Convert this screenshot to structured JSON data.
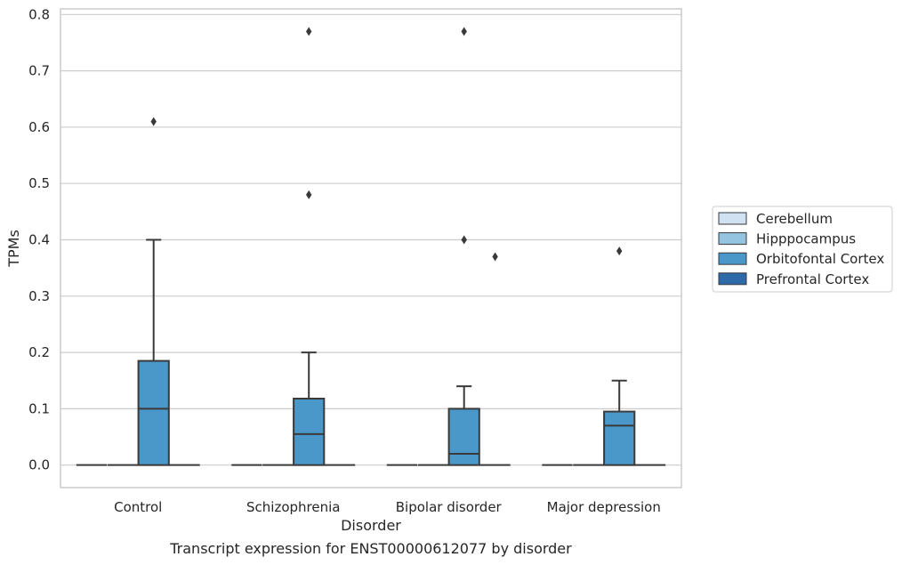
{
  "chart_data": {
    "type": "box",
    "title": "",
    "caption": "Transcript expression for ENST00000612077 by disorder",
    "xlabel": "Disorder",
    "ylabel": "TPMs",
    "ylim": [
      -0.04,
      0.81
    ],
    "yticks": [
      0.0,
      0.1,
      0.2,
      0.3,
      0.4,
      0.5,
      0.6,
      0.7,
      0.8
    ],
    "ytick_labels": [
      "0.0",
      "0.1",
      "0.2",
      "0.3",
      "0.4",
      "0.5",
      "0.6",
      "0.7",
      "0.8"
    ],
    "grid": "horizontal",
    "legend_position": "right",
    "categories": [
      "Control",
      "Schizophrenia",
      "Bipolar disorder",
      "Major depression"
    ],
    "series": [
      {
        "name": "Cerebellum",
        "color": "#d0e1f2",
        "boxes": [
          {
            "min": 0,
            "q1": 0,
            "median": 0,
            "q3": 0,
            "max": 0,
            "outliers": []
          },
          {
            "min": 0,
            "q1": 0,
            "median": 0,
            "q3": 0,
            "max": 0,
            "outliers": []
          },
          {
            "min": 0,
            "q1": 0,
            "median": 0,
            "q3": 0,
            "max": 0,
            "outliers": []
          },
          {
            "min": 0,
            "q1": 0,
            "median": 0,
            "q3": 0,
            "max": 0,
            "outliers": []
          }
        ]
      },
      {
        "name": "Hipppocampus",
        "color": "#94c4df",
        "boxes": [
          {
            "min": 0,
            "q1": 0,
            "median": 0,
            "q3": 0,
            "max": 0,
            "outliers": []
          },
          {
            "min": 0,
            "q1": 0,
            "median": 0,
            "q3": 0,
            "max": 0,
            "outliers": []
          },
          {
            "min": 0,
            "q1": 0,
            "median": 0,
            "q3": 0,
            "max": 0,
            "outliers": []
          },
          {
            "min": 0,
            "q1": 0,
            "median": 0,
            "q3": 0,
            "max": 0,
            "outliers": []
          }
        ]
      },
      {
        "name": "Orbitofontal Cortex",
        "color": "#4a98c9",
        "boxes": [
          {
            "min": 0,
            "q1": 0,
            "median": 0.1,
            "q3": 0.185,
            "max": 0.4,
            "outliers": [
              0.61
            ]
          },
          {
            "min": 0,
            "q1": 0,
            "median": 0.055,
            "q3": 0.118,
            "max": 0.2,
            "outliers": [
              0.48,
              0.77
            ]
          },
          {
            "min": 0,
            "q1": 0,
            "median": 0.02,
            "q3": 0.1,
            "max": 0.14,
            "outliers": [
              0.77,
              0.4
            ]
          },
          {
            "min": 0,
            "q1": 0,
            "median": 0.07,
            "q3": 0.095,
            "max": 0.15,
            "outliers": [
              0.38
            ]
          }
        ]
      },
      {
        "name": "Prefrontal Cortex",
        "color": "#2e6aa8",
        "boxes": [
          {
            "min": 0,
            "q1": 0,
            "median": 0,
            "q3": 0,
            "max": 0,
            "outliers": []
          },
          {
            "min": 0,
            "q1": 0,
            "median": 0,
            "q3": 0,
            "max": 0,
            "outliers": []
          },
          {
            "min": 0,
            "q1": 0,
            "median": 0,
            "q3": 0,
            "max": 0,
            "outliers": [
              0.37
            ]
          },
          {
            "min": 0,
            "q1": 0,
            "median": 0,
            "q3": 0,
            "max": 0,
            "outliers": []
          }
        ]
      }
    ]
  }
}
